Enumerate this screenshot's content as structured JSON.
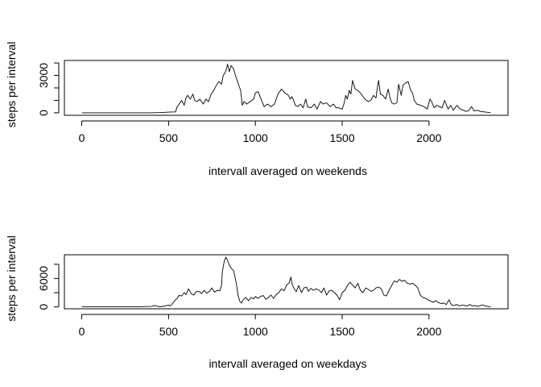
{
  "chart_data": [
    {
      "type": "line",
      "title": "",
      "xlabel": "intervall averaged on weekends",
      "ylabel": "steps per interval",
      "xlim": [
        -100,
        2455
      ],
      "ylim": [
        -200,
        4200
      ],
      "xticks": [
        0,
        500,
        1000,
        1500,
        2000
      ],
      "yticks": [
        0,
        1000,
        2000,
        3000,
        4000
      ],
      "ytick_labels": [
        "0",
        "",
        "",
        "3000",
        ""
      ],
      "grid": false,
      "legend": "none",
      "x": [
        0,
        100,
        200,
        300,
        400,
        455,
        500,
        540,
        550,
        575,
        590,
        600,
        610,
        625,
        640,
        650,
        665,
        680,
        700,
        715,
        730,
        745,
        760,
        775,
        790,
        805,
        815,
        825,
        835,
        840,
        850,
        860,
        875,
        885,
        895,
        905,
        915,
        925,
        935,
        950,
        970,
        990,
        1000,
        1015,
        1030,
        1050,
        1070,
        1090,
        1110,
        1130,
        1150,
        1170,
        1190,
        1200,
        1210,
        1220,
        1230,
        1245,
        1260,
        1275,
        1290,
        1300,
        1320,
        1340,
        1355,
        1365,
        1375,
        1390,
        1410,
        1430,
        1450,
        1465,
        1480,
        1500,
        1510,
        1520,
        1530,
        1540,
        1550,
        1560,
        1575,
        1590,
        1610,
        1630,
        1650,
        1665,
        1680,
        1695,
        1700,
        1710,
        1720,
        1735,
        1750,
        1765,
        1775,
        1785,
        1800,
        1815,
        1825,
        1840,
        1850,
        1865,
        1880,
        1895,
        1905,
        1915,
        1930,
        1950,
        1970,
        1990,
        2005,
        2015,
        2030,
        2045,
        2060,
        2075,
        2090,
        2110,
        2125,
        2140,
        2160,
        2180,
        2200,
        2215,
        2230,
        2245,
        2260,
        2280,
        2300,
        2330,
        2355
      ],
      "y": [
        0,
        0,
        0,
        0,
        0,
        20,
        50,
        70,
        500,
        1000,
        600,
        1200,
        1400,
        1100,
        1500,
        1000,
        900,
        1100,
        700,
        1100,
        900,
        1500,
        1800,
        2200,
        2500,
        2300,
        3000,
        3200,
        3600,
        3900,
        3300,
        3800,
        3500,
        3000,
        2600,
        2200,
        1800,
        600,
        900,
        700,
        900,
        1100,
        1600,
        1700,
        1200,
        500,
        700,
        500,
        700,
        1500,
        1900,
        1600,
        1400,
        1100,
        1300,
        1000,
        600,
        500,
        700,
        400,
        1100,
        500,
        400,
        700,
        300,
        600,
        900,
        700,
        800,
        500,
        700,
        400,
        400,
        300,
        700,
        1400,
        1100,
        1800,
        1500,
        2600,
        1900,
        1800,
        1500,
        1100,
        900,
        1000,
        1400,
        1200,
        1800,
        2600,
        1500,
        1400,
        1100,
        1900,
        1200,
        800,
        700,
        800,
        2300,
        1400,
        2200,
        2400,
        2500,
        1800,
        1600,
        1000,
        700,
        600,
        500,
        300,
        1100,
        900,
        400,
        600,
        500,
        400,
        1000,
        300,
        600,
        200,
        600,
        300,
        200,
        100,
        200,
        500,
        150,
        200,
        100,
        50,
        0
      ]
    },
    {
      "type": "line",
      "title": "",
      "xlabel": "intervall averaged on weekdays",
      "ylabel": "steps per interval",
      "xlim": [
        -100,
        2455
      ],
      "ylim": [
        -400,
        11000
      ],
      "xticks": [
        0,
        500,
        1000,
        1500,
        2000
      ],
      "yticks": [
        0,
        3000,
        6000,
        9000
      ],
      "ytick_labels": [
        "0",
        "",
        "6000",
        ""
      ],
      "grid": false,
      "legend": "none",
      "x": [
        0,
        100,
        200,
        300,
        400,
        420,
        450,
        480,
        500,
        510,
        525,
        540,
        550,
        560,
        575,
        590,
        600,
        615,
        630,
        645,
        660,
        675,
        690,
        705,
        720,
        735,
        750,
        765,
        780,
        795,
        805,
        810,
        820,
        830,
        840,
        850,
        860,
        875,
        890,
        900,
        910,
        920,
        930,
        945,
        960,
        975,
        990,
        1000,
        1015,
        1030,
        1045,
        1060,
        1075,
        1090,
        1105,
        1120,
        1135,
        1150,
        1165,
        1180,
        1195,
        1205,
        1210,
        1220,
        1235,
        1250,
        1265,
        1280,
        1295,
        1305,
        1320,
        1335,
        1350,
        1365,
        1380,
        1395,
        1410,
        1425,
        1440,
        1455,
        1470,
        1485,
        1500,
        1515,
        1530,
        1545,
        1560,
        1575,
        1590,
        1605,
        1620,
        1635,
        1650,
        1665,
        1680,
        1695,
        1710,
        1725,
        1740,
        1755,
        1770,
        1785,
        1800,
        1815,
        1830,
        1845,
        1860,
        1875,
        1890,
        1905,
        1920,
        1935,
        1950,
        1965,
        1980,
        1995,
        2010,
        2025,
        2040,
        2055,
        2070,
        2085,
        2100,
        2115,
        2130,
        2145,
        2160,
        2175,
        2190,
        2205,
        2220,
        2235,
        2250,
        2265,
        2280,
        2295,
        2310,
        2325,
        2340,
        2355
      ],
      "y": [
        0,
        0,
        0,
        0,
        100,
        300,
        0,
        200,
        400,
        200,
        800,
        1500,
        1800,
        2400,
        2300,
        3000,
        2600,
        3800,
        2800,
        2500,
        3200,
        3300,
        2800,
        3500,
        2900,
        3300,
        4000,
        3100,
        3500,
        3400,
        4500,
        7500,
        9500,
        10500,
        9800,
        8800,
        8200,
        7600,
        5000,
        2500,
        1200,
        800,
        1500,
        2000,
        1300,
        2000,
        1700,
        2200,
        1800,
        2200,
        2400,
        1600,
        2000,
        2500,
        1800,
        2600,
        3000,
        3800,
        3400,
        4600,
        5100,
        6300,
        5000,
        4100,
        3200,
        4500,
        3000,
        4000,
        4200,
        3300,
        3900,
        3500,
        3800,
        3600,
        3000,
        4000,
        2500,
        3400,
        3500,
        3000,
        2500,
        1500,
        3000,
        3500,
        4500,
        5200,
        4600,
        4000,
        5000,
        3500,
        3000,
        4000,
        3700,
        3300,
        3500,
        4000,
        4200,
        3800,
        2500,
        2300,
        3500,
        4500,
        5500,
        5200,
        5800,
        5400,
        5600,
        5000,
        4800,
        5000,
        4600,
        4000,
        2500,
        2000,
        1800,
        1500,
        1200,
        1000,
        1300,
        900,
        700,
        800,
        500,
        1500,
        400,
        300,
        500,
        200,
        400,
        300,
        200,
        500,
        200,
        300,
        100,
        300,
        400,
        200,
        100,
        0
      ]
    }
  ]
}
